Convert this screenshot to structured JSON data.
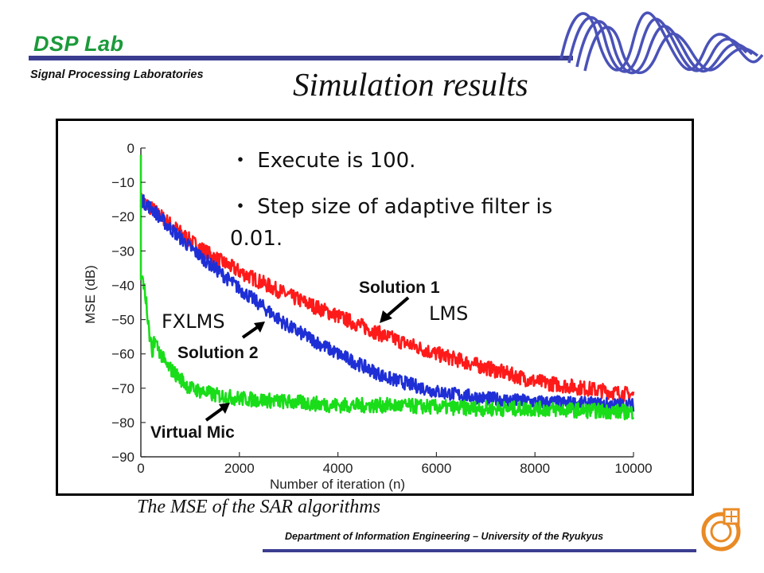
{
  "header": {
    "lab_name": "DSP Lab",
    "lab_subtitle": "Signal Processing Laboratories",
    "title": "Simulation results"
  },
  "notes": [
    "・ Execute is 100.",
    "・ Step size of adaptive filter is",
    "0.01."
  ],
  "caption": "The MSE of the SAR algorithms",
  "footer": {
    "department": "Department of Information Engineering – University of the Ryukyus"
  },
  "colors": {
    "lab_green": "#1b9a3a",
    "rule_blue": "#3a3d8f",
    "wave_blue": "#4a52b8",
    "logo_orange": "#e98a25"
  },
  "chart_data": {
    "type": "line",
    "title": "",
    "xlabel": "Number of iteration (n)",
    "ylabel": "MSE (dB)",
    "xlim": [
      0,
      10000
    ],
    "ylim": [
      -90,
      0
    ],
    "x_ticks": [
      "0",
      "2000",
      "4000",
      "6000",
      "8000",
      "10000"
    ],
    "y_ticks": [
      "0",
      "−10",
      "−20",
      "−30",
      "−40",
      "−50",
      "−60",
      "−70",
      "−80",
      "−90"
    ],
    "x": [
      0,
      250,
      500,
      1000,
      1500,
      2000,
      3000,
      4000,
      5000,
      6000,
      7000,
      8000,
      9000,
      10000
    ],
    "series": [
      {
        "color": "#ff1a1a",
        "values": [
          -15,
          -18,
          -21,
          -27,
          -32,
          -36,
          -43,
          -49,
          -55,
          -60,
          -64,
          -68,
          -70,
          -72
        ]
      },
      {
        "color": "#1f2fd6",
        "values": [
          -15,
          -18,
          -22,
          -29,
          -35,
          -41,
          -52,
          -60,
          -67,
          -71,
          -73,
          -74,
          -74.5,
          -75
        ]
      },
      {
        "color": "#19dd19",
        "values": [
          -33,
          -55,
          -63,
          -70,
          -72,
          -73,
          -74,
          -75,
          -75,
          -75.5,
          -76,
          -76,
          -76.5,
          -77
        ]
      }
    ],
    "annotations": {
      "solution1": "Solution 1",
      "lms": "LMS",
      "fxlms": "FXLMS",
      "solution2": "Solution 2",
      "virtual_mic": "Virtual Mic"
    },
    "grid": false,
    "legend": "none"
  }
}
